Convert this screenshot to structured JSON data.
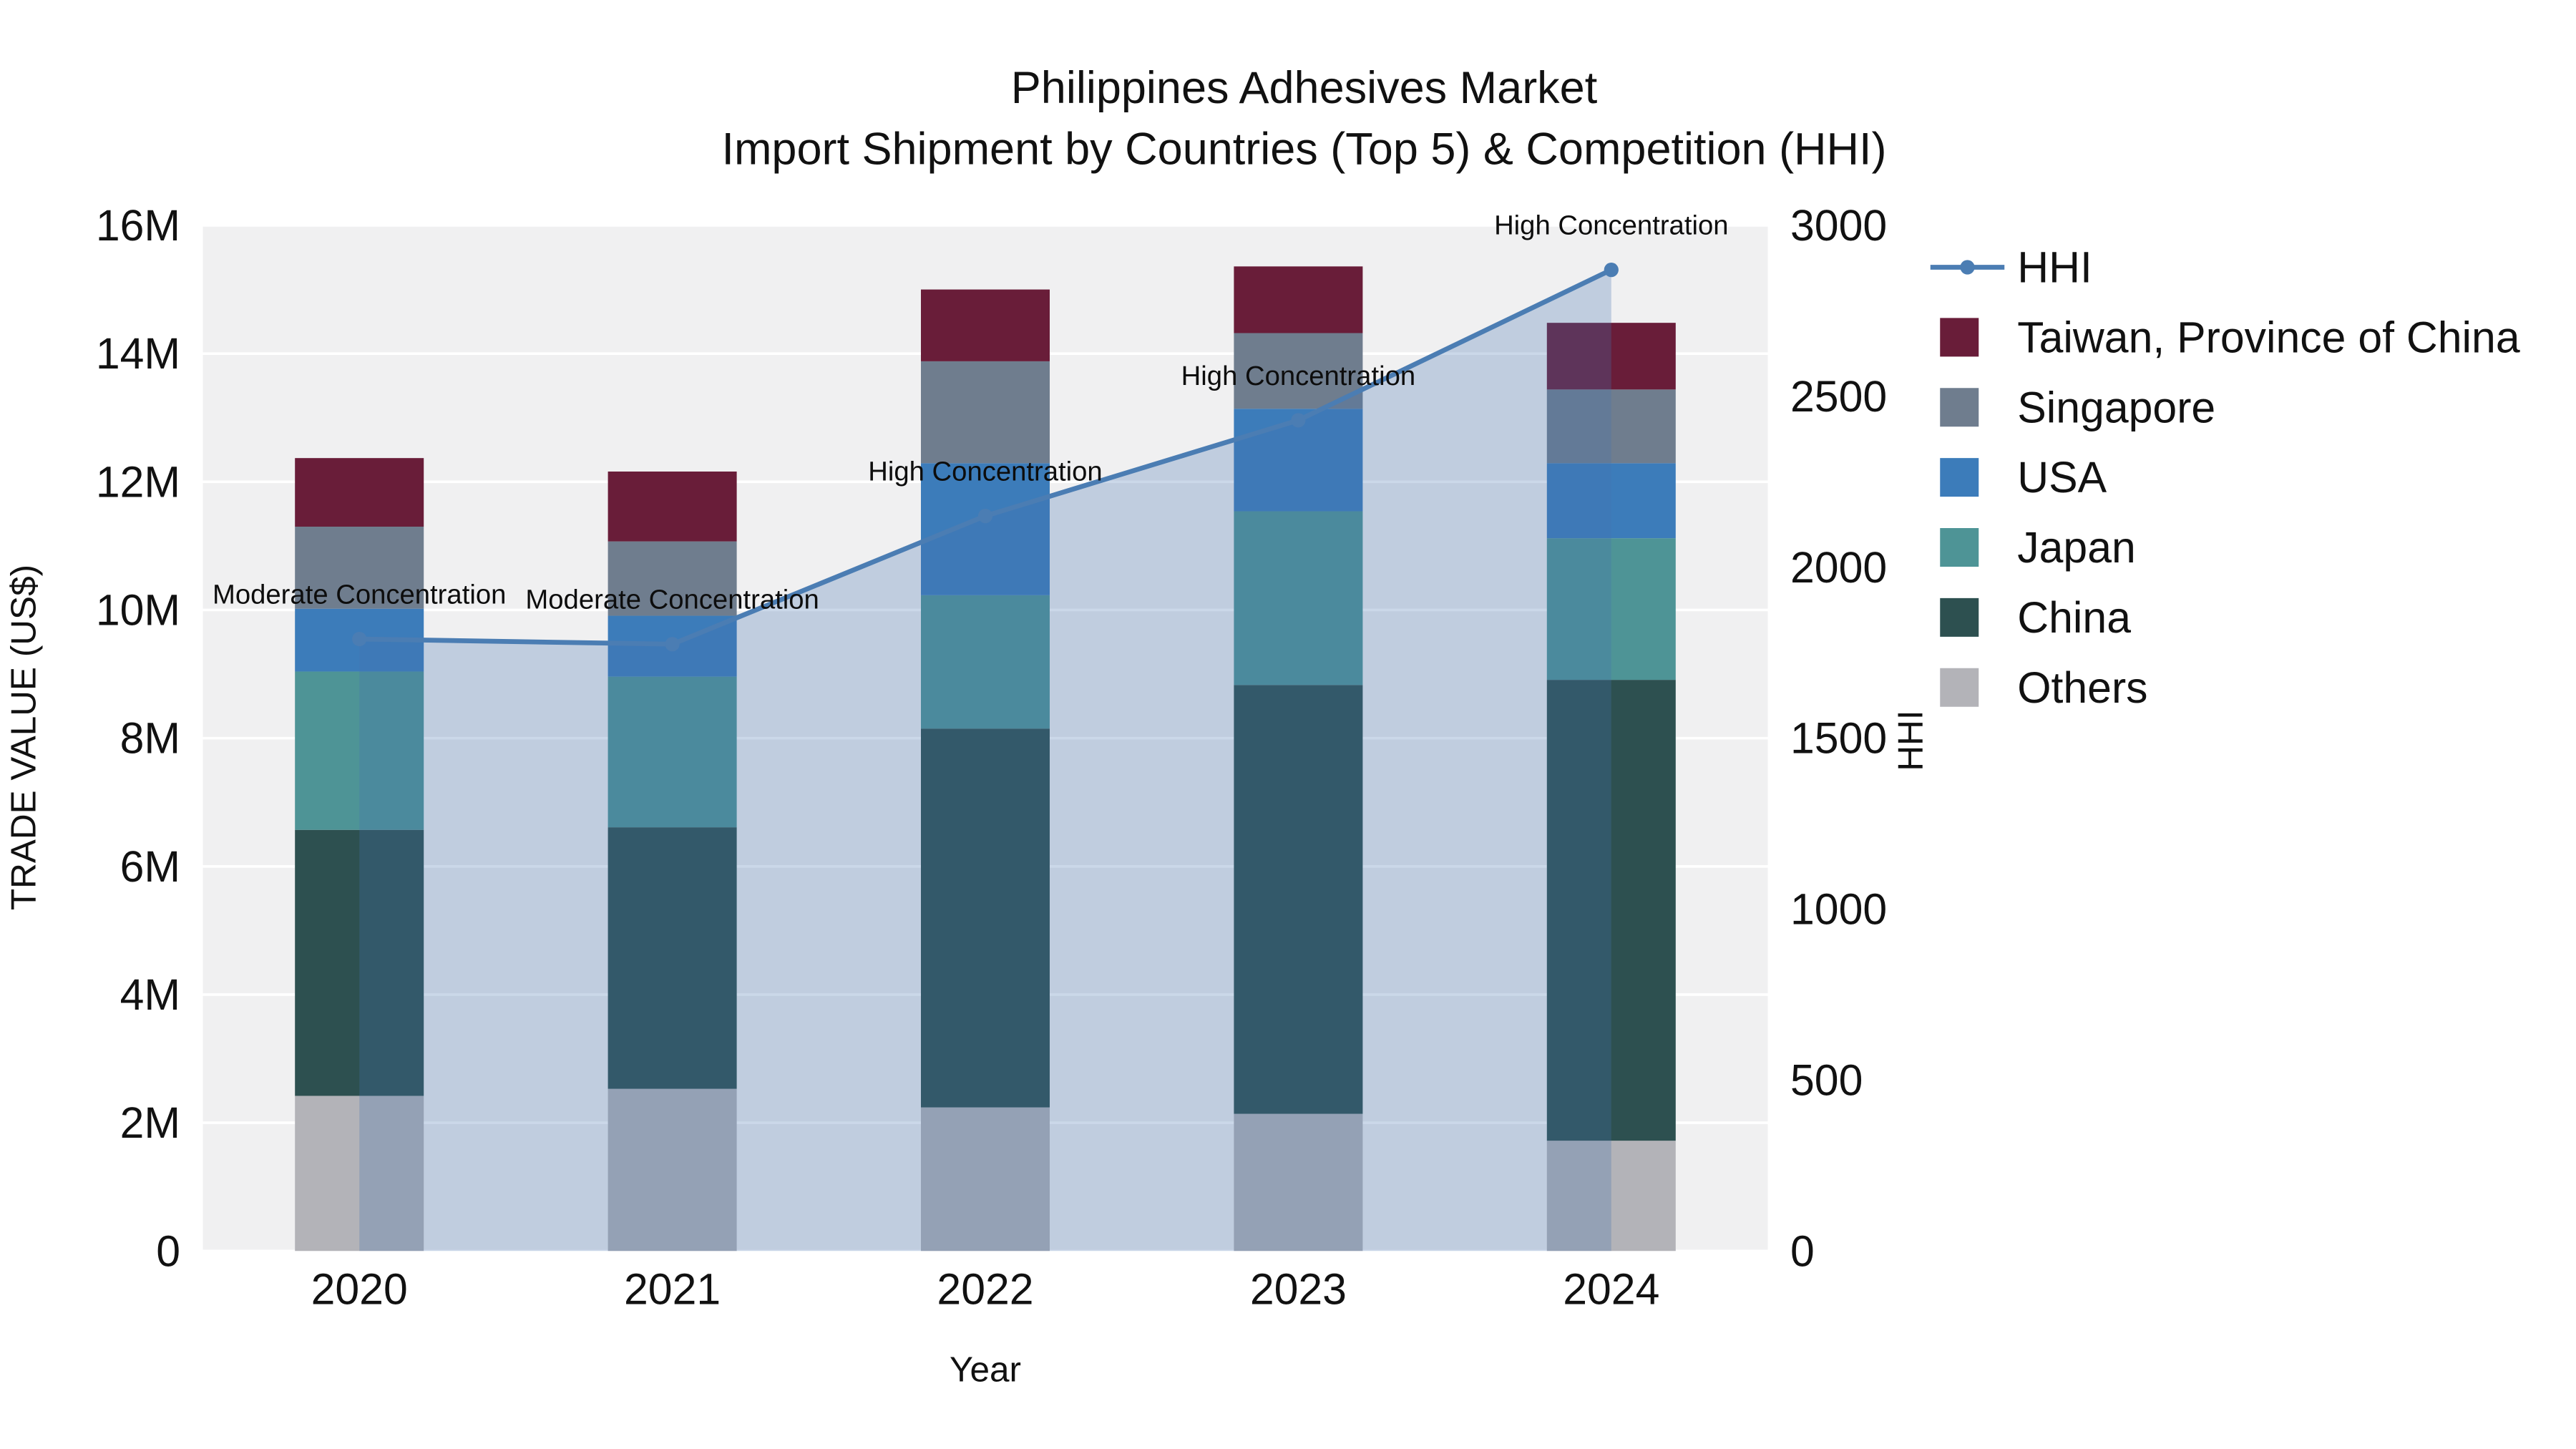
{
  "title": {
    "line1": "Philippines Adhesives Market",
    "line2": "Import Shipment by Countries (Top 5) & Competition (HHI)"
  },
  "axes": {
    "x_label": "Year",
    "y_left_label": "TRADE VALUE (US$)",
    "y_right_label": "HHI",
    "y_left_ticks": [
      {
        "value": 0,
        "label": "0"
      },
      {
        "value": 2000000,
        "label": "2M"
      },
      {
        "value": 4000000,
        "label": "4M"
      },
      {
        "value": 6000000,
        "label": "6M"
      },
      {
        "value": 8000000,
        "label": "8M"
      },
      {
        "value": 10000000,
        "label": "10M"
      },
      {
        "value": 12000000,
        "label": "12M"
      },
      {
        "value": 14000000,
        "label": "14M"
      },
      {
        "value": 16000000,
        "label": "16M"
      }
    ],
    "y_right_ticks": [
      {
        "value": 0,
        "label": "0"
      },
      {
        "value": 500,
        "label": "500"
      },
      {
        "value": 1000,
        "label": "1000"
      },
      {
        "value": 1500,
        "label": "1500"
      },
      {
        "value": 2000,
        "label": "2000"
      },
      {
        "value": 2500,
        "label": "2500"
      },
      {
        "value": 3000,
        "label": "3000"
      }
    ]
  },
  "chart_data": {
    "type": "bar+line",
    "categories": [
      "2020",
      "2021",
      "2022",
      "2023",
      "2024"
    ],
    "y_left_range": [
      0,
      16000000
    ],
    "y_right_range": [
      0,
      3000
    ],
    "series": [
      {
        "name": "Others",
        "color": "#b3b3b8",
        "values": [
          2420000,
          2530000,
          2240000,
          2140000,
          1720000
        ]
      },
      {
        "name": "China",
        "color": "#2d5050",
        "values": [
          4150000,
          4080000,
          5910000,
          6690000,
          7190000
        ]
      },
      {
        "name": "Japan",
        "color": "#4e9496",
        "values": [
          2470000,
          2350000,
          2080000,
          2710000,
          2210000
        ]
      },
      {
        "name": "USA",
        "color": "#3c7cba",
        "values": [
          980000,
          950000,
          2060000,
          1600000,
          1170000
        ]
      },
      {
        "name": "Singapore",
        "color": "#6f7d8e",
        "values": [
          1280000,
          1160000,
          1590000,
          1180000,
          1150000
        ]
      },
      {
        "name": "Taiwan, Province of China",
        "color": "#691d39",
        "values": [
          1070000,
          1090000,
          1120000,
          1040000,
          1040000
        ]
      }
    ],
    "line_series": {
      "name": "HHI",
      "color": "#4b7db3",
      "area_fill": "rgba(70,115,175,0.28)",
      "values": [
        1790,
        1775,
        2150,
        2430,
        2870
      ]
    },
    "annotations": [
      {
        "category": "2020",
        "text": "Moderate Concentration"
      },
      {
        "category": "2021",
        "text": "Moderate Concentration"
      },
      {
        "category": "2022",
        "text": "High Concentration"
      },
      {
        "category": "2023",
        "text": "High Concentration"
      },
      {
        "category": "2024",
        "text": "High Concentration"
      }
    ],
    "legend_order": [
      "HHI",
      "Taiwan, Province of China",
      "Singapore",
      "USA",
      "Japan",
      "China",
      "Others"
    ]
  },
  "colors": {
    "plot_bg": "#f0f0f1",
    "grid": "#ffffff",
    "text": "#111111"
  }
}
